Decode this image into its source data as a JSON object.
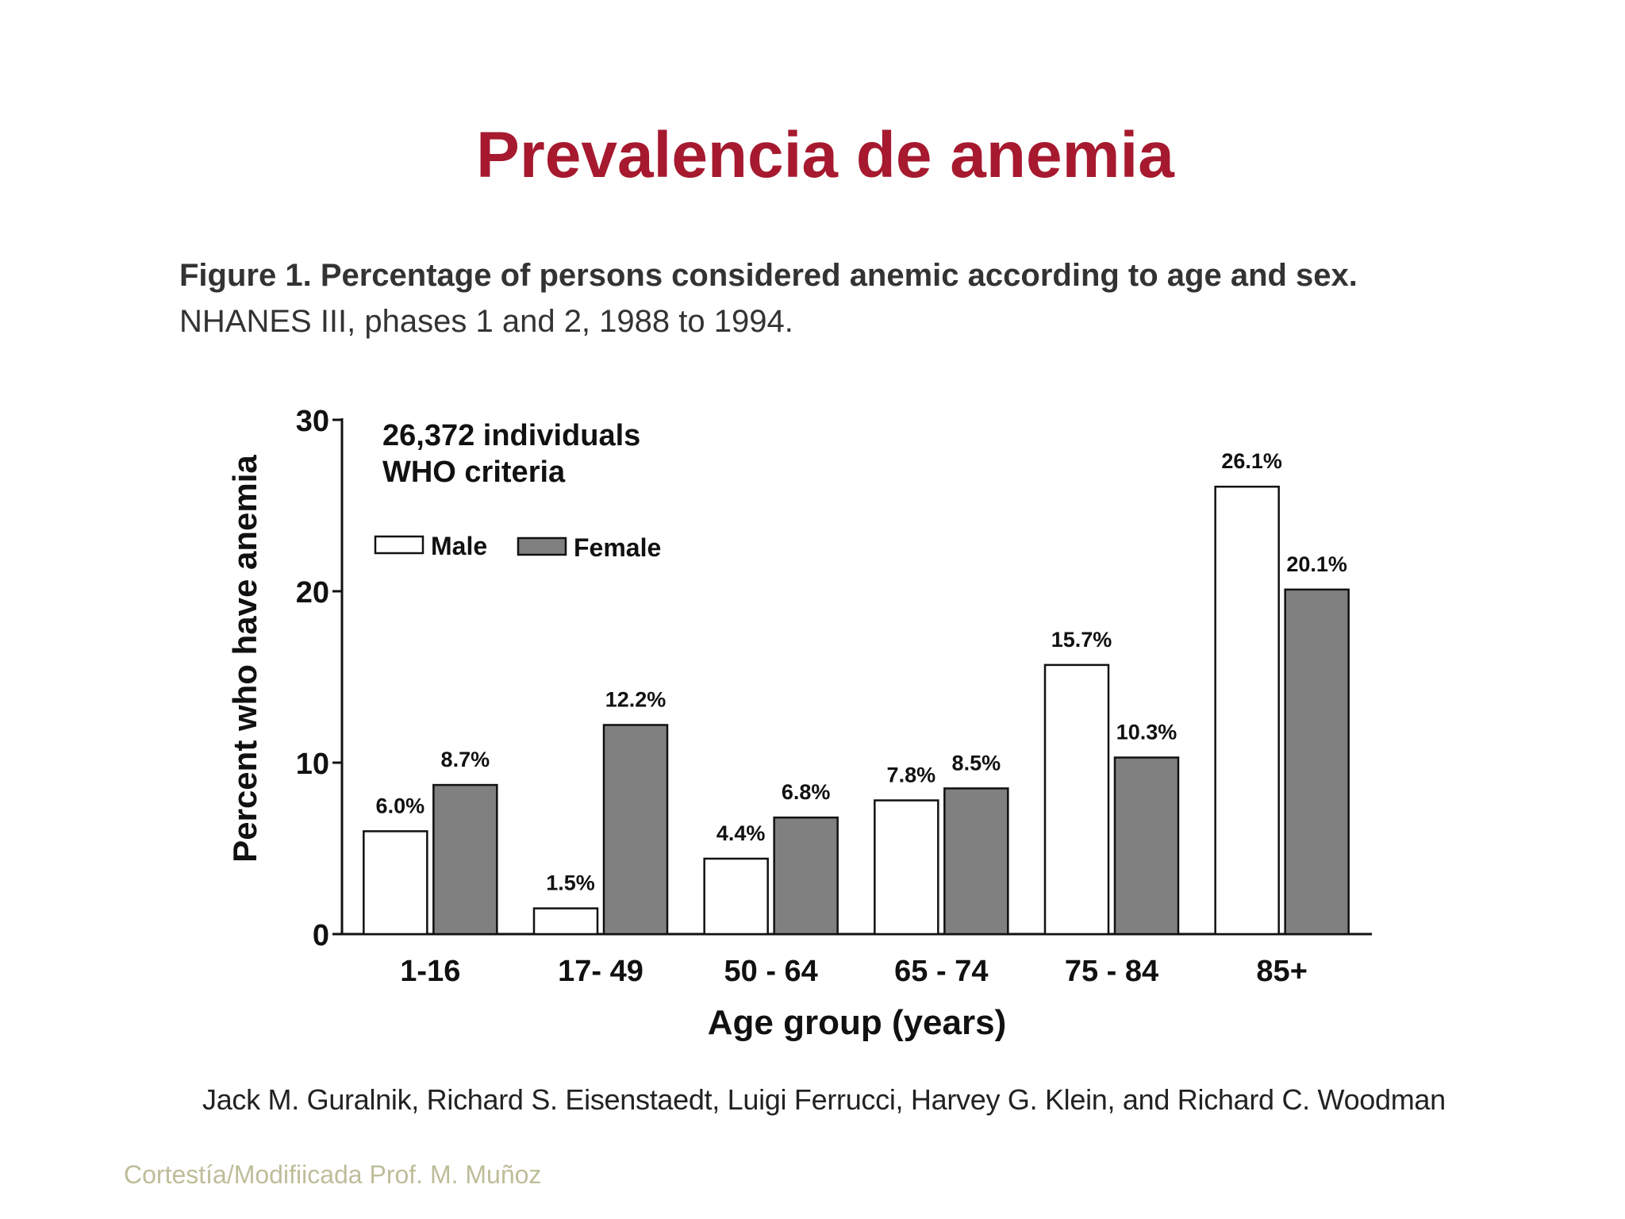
{
  "slide": {
    "title": "Prevalencia de anemia",
    "caption_bold": "Figure 1. Percentage of persons considered anemic according to age and sex.",
    "caption_normal": "NHANES III, phases 1 and 2, 1988 to 1994.",
    "authors": "Jack M. Guralnik, Richard S. Eisenstaedt, Luigi Ferrucci, Harvey G. Klein, and Richard C. Woodman",
    "courtesy": "Cortestía/Modifiicada Prof. M. Muñoz"
  },
  "chart_data": {
    "type": "bar",
    "xlabel": "Age group (years)",
    "ylabel": "Percent who have anemia",
    "ylim": [
      0,
      30
    ],
    "yticks": [
      0,
      10,
      20,
      30
    ],
    "grid": false,
    "legend_position": "top-left",
    "annotation": [
      "26,372 individuals",
      "WHO criteria"
    ],
    "categories": [
      "1-16",
      "17- 49",
      "50 - 64",
      "65 - 74",
      "75 - 84",
      "85+"
    ],
    "series": [
      {
        "name": "Male",
        "color": "#ffffff",
        "values": [
          6.0,
          1.5,
          4.4,
          7.8,
          15.7,
          26.1
        ],
        "labels": [
          "6.0%",
          "1.5%",
          "4.4%",
          "7.8%",
          "15.7%",
          "26.1%"
        ]
      },
      {
        "name": "Female",
        "color": "#808080",
        "values": [
          8.7,
          12.2,
          6.8,
          8.5,
          10.3,
          20.1
        ],
        "labels": [
          "8.7%",
          "12.2%",
          "6.8%",
          "8.5%",
          "10.3%",
          "20.1%"
        ]
      }
    ]
  }
}
